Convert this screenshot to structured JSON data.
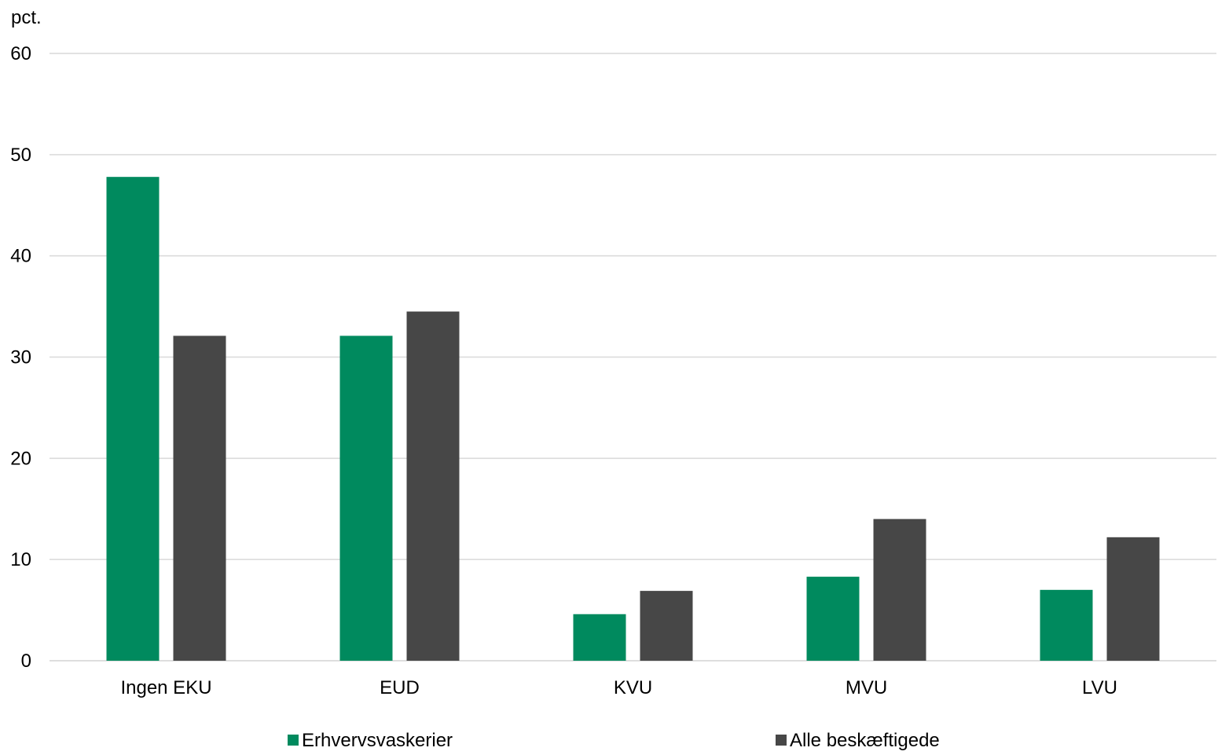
{
  "chart_data": {
    "type": "bar",
    "title": "",
    "ylabel": "pct.",
    "xlabel": "",
    "categories": [
      "Ingen EKU",
      "EUD",
      "KVU",
      "MVU",
      "LVU"
    ],
    "series": [
      {
        "name": "Erhvervsvaskerier",
        "values": [
          47.8,
          32.1,
          4.6,
          8.3,
          7.0
        ],
        "color": "#008a5e"
      },
      {
        "name": "Alle beskæftigede",
        "values": [
          32.1,
          34.5,
          6.9,
          14.0,
          12.2
        ],
        "color": "#474747"
      }
    ],
    "ylim": [
      0,
      60
    ],
    "yticks": [
      0,
      10,
      20,
      30,
      40,
      50,
      60
    ],
    "grid": true,
    "gridColor": "#d9d9d9",
    "legend_position": "bottom"
  }
}
